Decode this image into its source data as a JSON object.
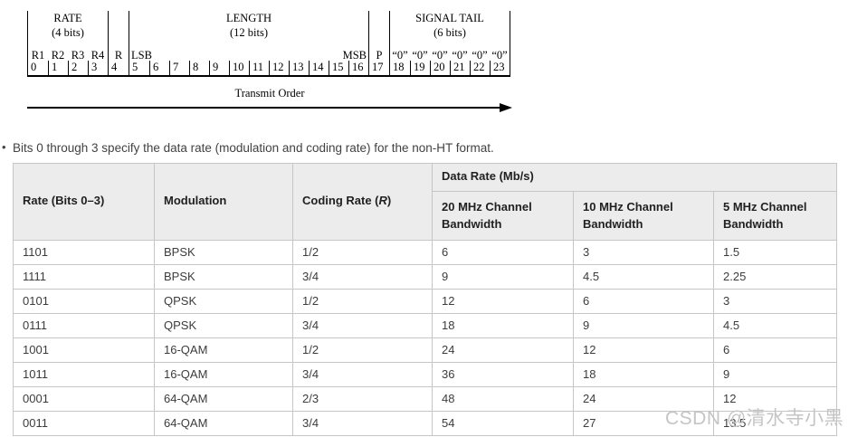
{
  "diagram": {
    "fields": [
      {
        "name": "RATE",
        "bits_label": "(4 bits)",
        "labels": [
          "R1",
          "R2",
          "R3",
          "R4"
        ],
        "bits": [
          "0",
          "1",
          "2",
          "3"
        ]
      },
      {
        "name": "",
        "bits_label": "",
        "labels": [
          "R"
        ],
        "bits": [
          "4"
        ]
      },
      {
        "name": "LENGTH",
        "bits_label": "(12 bits)",
        "labels": [
          "LSB",
          "MSB"
        ],
        "bits": [
          "5",
          "6",
          "7",
          "8",
          "9",
          "10",
          "11",
          "12",
          "13",
          "14",
          "15",
          "16"
        ]
      },
      {
        "name": "",
        "bits_label": "",
        "labels": [
          "P"
        ],
        "bits": [
          "17"
        ]
      },
      {
        "name": "SIGNAL TAIL",
        "bits_label": "(6 bits)",
        "labels": [
          "“0”",
          "“0”",
          "“0”",
          "“0”",
          "“0”",
          "“0”"
        ],
        "bits": [
          "18",
          "19",
          "20",
          "21",
          "22",
          "23"
        ]
      }
    ],
    "transmit_order_label": "Transmit Order"
  },
  "bullet": {
    "marker": "•",
    "text": "Bits 0 through 3 specify the data rate (modulation and coding rate) for the non-HT format."
  },
  "table": {
    "headers": {
      "rate": "Rate (Bits 0–3)",
      "modulation": "Modulation",
      "coding_rate_prefix": "Coding Rate (",
      "coding_rate_symbol": "R",
      "coding_rate_suffix": ")",
      "data_rate_group": "Data Rate (Mb/s)",
      "bw20": "20 MHz Channel Bandwidth",
      "bw10": "10 MHz Channel Bandwidth",
      "bw5": "5 MHz Channel Bandwidth"
    },
    "rows": [
      {
        "rate": "1101",
        "modulation": "BPSK",
        "coding_rate": "1/2",
        "mbps_20": "6",
        "mbps_10": "3",
        "mbps_5": "1.5"
      },
      {
        "rate": "1111",
        "modulation": "BPSK",
        "coding_rate": "3/4",
        "mbps_20": "9",
        "mbps_10": "4.5",
        "mbps_5": "2.25"
      },
      {
        "rate": "0101",
        "modulation": "QPSK",
        "coding_rate": "1/2",
        "mbps_20": "12",
        "mbps_10": "6",
        "mbps_5": "3"
      },
      {
        "rate": "0111",
        "modulation": "QPSK",
        "coding_rate": "3/4",
        "mbps_20": "18",
        "mbps_10": "9",
        "mbps_5": "4.5"
      },
      {
        "rate": "1001",
        "modulation": "16-QAM",
        "coding_rate": "1/2",
        "mbps_20": "24",
        "mbps_10": "12",
        "mbps_5": "6"
      },
      {
        "rate": "1011",
        "modulation": "16-QAM",
        "coding_rate": "3/4",
        "mbps_20": "36",
        "mbps_10": "18",
        "mbps_5": "9"
      },
      {
        "rate": "0001",
        "modulation": "64-QAM",
        "coding_rate": "2/3",
        "mbps_20": "48",
        "mbps_10": "24",
        "mbps_5": "12"
      },
      {
        "rate": "0011",
        "modulation": "64-QAM",
        "coding_rate": "3/4",
        "mbps_20": "54",
        "mbps_10": "27",
        "mbps_5": "13.5"
      }
    ]
  },
  "watermark": {
    "text": "CSDN @清水寺小黑",
    "color": "#c5c5c5"
  }
}
